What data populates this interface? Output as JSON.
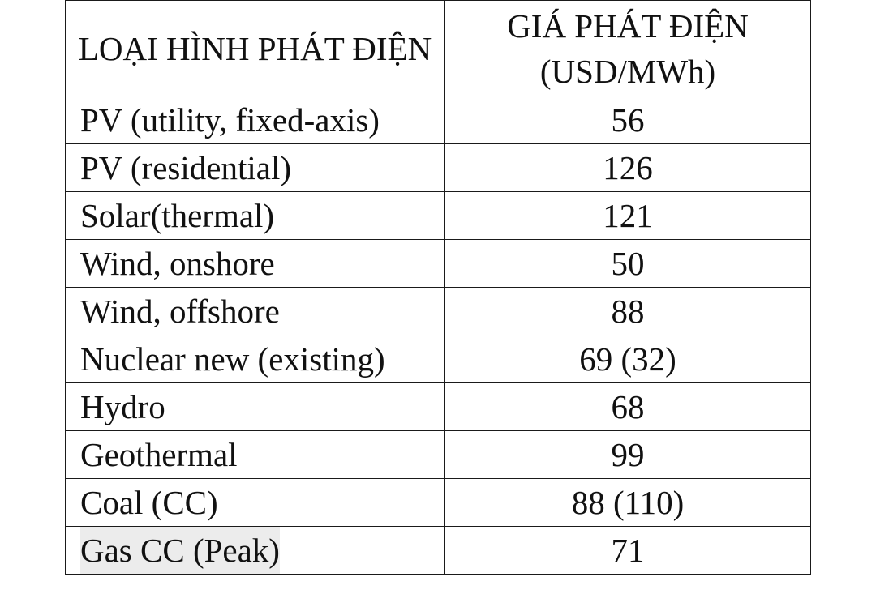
{
  "table": {
    "headers": {
      "type": "LOẠI HÌNH PHÁT ĐIỆN",
      "price": "GIÁ PHÁT ĐIỆN (USD/MWh)"
    },
    "rows": [
      {
        "type": "PV (utility, fixed-axis)",
        "price": "56"
      },
      {
        "type": "PV (residential)",
        "price": "126"
      },
      {
        "type": "Solar(thermal)",
        "price": "121"
      },
      {
        "type": "Wind, onshore",
        "price": "50"
      },
      {
        "type": "Wind, offshore",
        "price": "88"
      },
      {
        "type": "Nuclear new (existing)",
        "price": "69 (32)"
      },
      {
        "type": "Hydro",
        "price": "68"
      },
      {
        "type": "Geothermal",
        "price": "99"
      },
      {
        "type": "Coal (CC)",
        "price": "88 (110)"
      },
      {
        "type": "Gas CC (Peak)",
        "price": "71"
      }
    ]
  }
}
